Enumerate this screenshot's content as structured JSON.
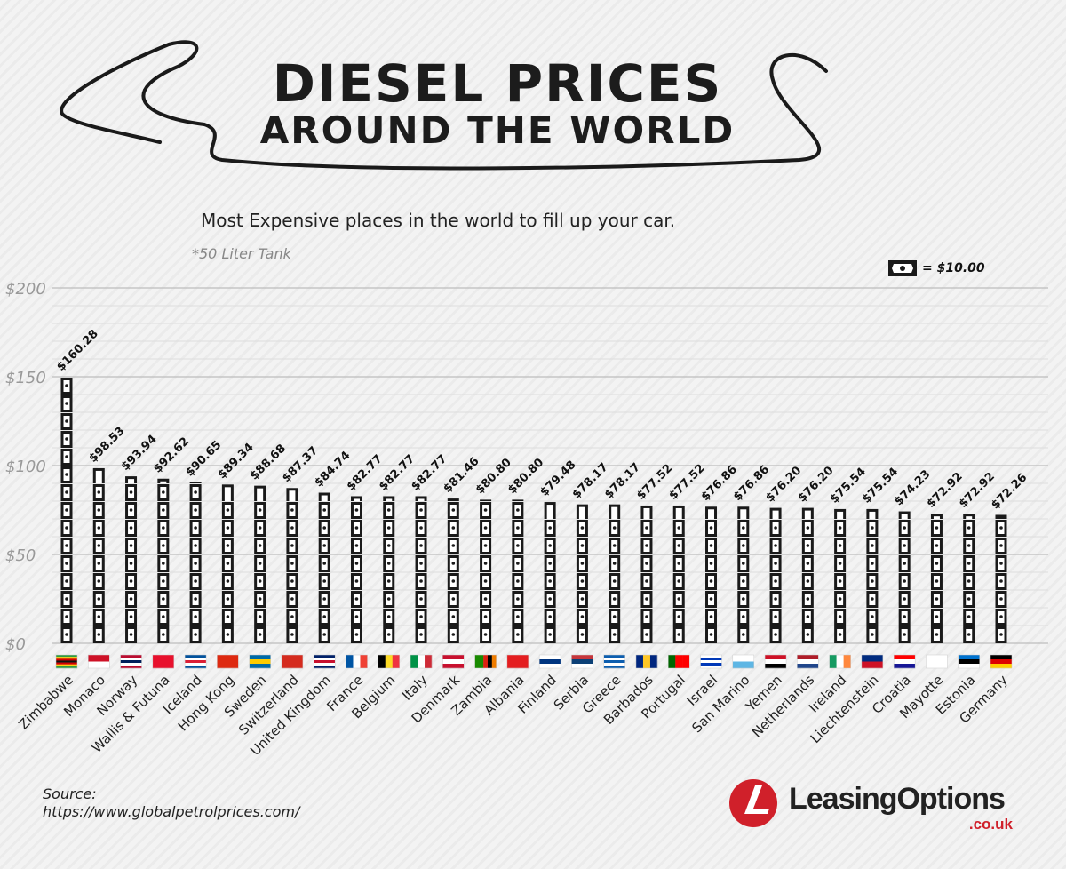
{
  "header": {
    "title_line1": "DIESEL PRICES",
    "title_line2": "AROUND THE WORLD",
    "subtitle": "Most Expensive places in the world to fill up your car.",
    "note": "*50 Liter Tank"
  },
  "legend": {
    "icon": "banknote-icon",
    "label": "= $10.00"
  },
  "footer": {
    "source_label": "Source:",
    "source_url": "https://www.globalpetrolprices.com/",
    "logo_text": "LeasingOptions",
    "logo_domain": ".co.uk",
    "brand_color": "#d0202a"
  },
  "chart_data": {
    "type": "bar",
    "unit_value": 10,
    "ylim": [
      0,
      200
    ],
    "yticks": [
      {
        "v": 0,
        "label": "$0"
      },
      {
        "v": 50,
        "label": "$50"
      },
      {
        "v": 100,
        "label": "$100"
      },
      {
        "v": 150,
        "label": "$150"
      },
      {
        "v": 200,
        "label": "$200"
      }
    ],
    "grid": true,
    "bar_color": "#1a1a1a",
    "categories": [
      "Zimbabwe",
      "Monaco",
      "Norway",
      "Wallis & Futuna",
      "Iceland",
      "Hong Kong",
      "Sweden",
      "Switzerland",
      "United Kingdom",
      "France",
      "Belgium",
      "Italy",
      "Denmark",
      "Zambia",
      "Albania",
      "Finland",
      "Serbia",
      "Greece",
      "Barbados",
      "Portugal",
      "Israel",
      "San Marino",
      "Yemen",
      "Netherlands",
      "Ireland",
      "Liechtenstein",
      "Croatia",
      "Mayotte",
      "Estonia",
      "Germany"
    ],
    "values": [
      160.28,
      98.53,
      93.94,
      92.62,
      90.65,
      89.34,
      88.68,
      87.37,
      84.74,
      82.77,
      82.77,
      82.77,
      81.46,
      80.8,
      80.8,
      79.48,
      78.17,
      78.17,
      77.52,
      77.52,
      76.86,
      76.86,
      76.2,
      76.2,
      75.54,
      75.54,
      74.23,
      72.92,
      72.92,
      72.26
    ],
    "labels": [
      "$160.28",
      "$98.53",
      "$93.94",
      "$92.62",
      "$90.65",
      "$89.34",
      "$88.68",
      "$87.37",
      "$84.74",
      "$82.77",
      "$82.77",
      "$82.77",
      "$81.46",
      "$80.80",
      "$80.80",
      "$79.48",
      "$78.17",
      "$78.17",
      "$77.52",
      "$77.52",
      "$76.86",
      "$76.86",
      "$76.20",
      "$76.20",
      "$75.54",
      "$75.54",
      "$74.23",
      "$72.92",
      "$72.92",
      "$72.26"
    ],
    "flags": [
      {
        "dir": "h",
        "c": [
          "#319b42",
          "#fcd116",
          "#d40000",
          "#111",
          "#d40000",
          "#fcd116",
          "#319b42"
        ]
      },
      {
        "dir": "h",
        "c": [
          "#ce1126",
          "#ffffff"
        ]
      },
      {
        "dir": "h",
        "c": [
          "#ba0c2f",
          "#fff",
          "#00205b",
          "#fff",
          "#ba0c2f"
        ]
      },
      {
        "dir": "h",
        "c": [
          "#e8112d",
          "#e8112d"
        ]
      },
      {
        "dir": "h",
        "c": [
          "#02529c",
          "#fff",
          "#dc1e35",
          "#fff",
          "#02529c"
        ]
      },
      {
        "dir": "h",
        "c": [
          "#de2910",
          "#de2910"
        ]
      },
      {
        "dir": "h",
        "c": [
          "#006aa7",
          "#fecc00",
          "#006aa7"
        ]
      },
      {
        "dir": "h",
        "c": [
          "#d52b1e",
          "#d52b1e"
        ]
      },
      {
        "dir": "h",
        "c": [
          "#012169",
          "#fff",
          "#c8102e",
          "#fff",
          "#012169"
        ]
      },
      {
        "dir": "v",
        "c": [
          "#0055a4",
          "#ffffff",
          "#ef4135"
        ]
      },
      {
        "dir": "v",
        "c": [
          "#000000",
          "#fdda24",
          "#ef3340"
        ]
      },
      {
        "dir": "v",
        "c": [
          "#009246",
          "#ffffff",
          "#ce2b37"
        ]
      },
      {
        "dir": "h",
        "c": [
          "#c8102e",
          "#fff",
          "#c8102e"
        ]
      },
      {
        "dir": "v",
        "c": [
          "#198a00",
          "#198a00",
          "#de2010",
          "#000",
          "#ef7d00"
        ]
      },
      {
        "dir": "h",
        "c": [
          "#e41e20",
          "#e41e20"
        ]
      },
      {
        "dir": "h",
        "c": [
          "#fff",
          "#003580",
          "#fff"
        ]
      },
      {
        "dir": "h",
        "c": [
          "#c6363c",
          "#0c4076",
          "#ffffff"
        ]
      },
      {
        "dir": "h",
        "c": [
          "#0d5eaf",
          "#fff",
          "#0d5eaf",
          "#fff",
          "#0d5eaf"
        ]
      },
      {
        "dir": "v",
        "c": [
          "#00267f",
          "#ffc726",
          "#00267f"
        ]
      },
      {
        "dir": "v",
        "c": [
          "#006600",
          "#ff0000",
          "#ff0000"
        ]
      },
      {
        "dir": "h",
        "c": [
          "#fff",
          "#0038b8",
          "#fff",
          "#0038b8",
          "#fff"
        ]
      },
      {
        "dir": "h",
        "c": [
          "#ffffff",
          "#5eb6e4"
        ]
      },
      {
        "dir": "h",
        "c": [
          "#ce1126",
          "#ffffff",
          "#000000"
        ]
      },
      {
        "dir": "h",
        "c": [
          "#ae1c28",
          "#ffffff",
          "#21468b"
        ]
      },
      {
        "dir": "v",
        "c": [
          "#169b62",
          "#ffffff",
          "#ff883e"
        ]
      },
      {
        "dir": "h",
        "c": [
          "#002b7f",
          "#ce1126"
        ]
      },
      {
        "dir": "h",
        "c": [
          "#ff0000",
          "#ffffff",
          "#171796"
        ]
      },
      {
        "dir": "h",
        "c": [
          "#ffffff",
          "#ffffff"
        ]
      },
      {
        "dir": "h",
        "c": [
          "#0072ce",
          "#000000",
          "#ffffff"
        ]
      },
      {
        "dir": "h",
        "c": [
          "#000000",
          "#dd0000",
          "#ffce00"
        ]
      }
    ]
  }
}
